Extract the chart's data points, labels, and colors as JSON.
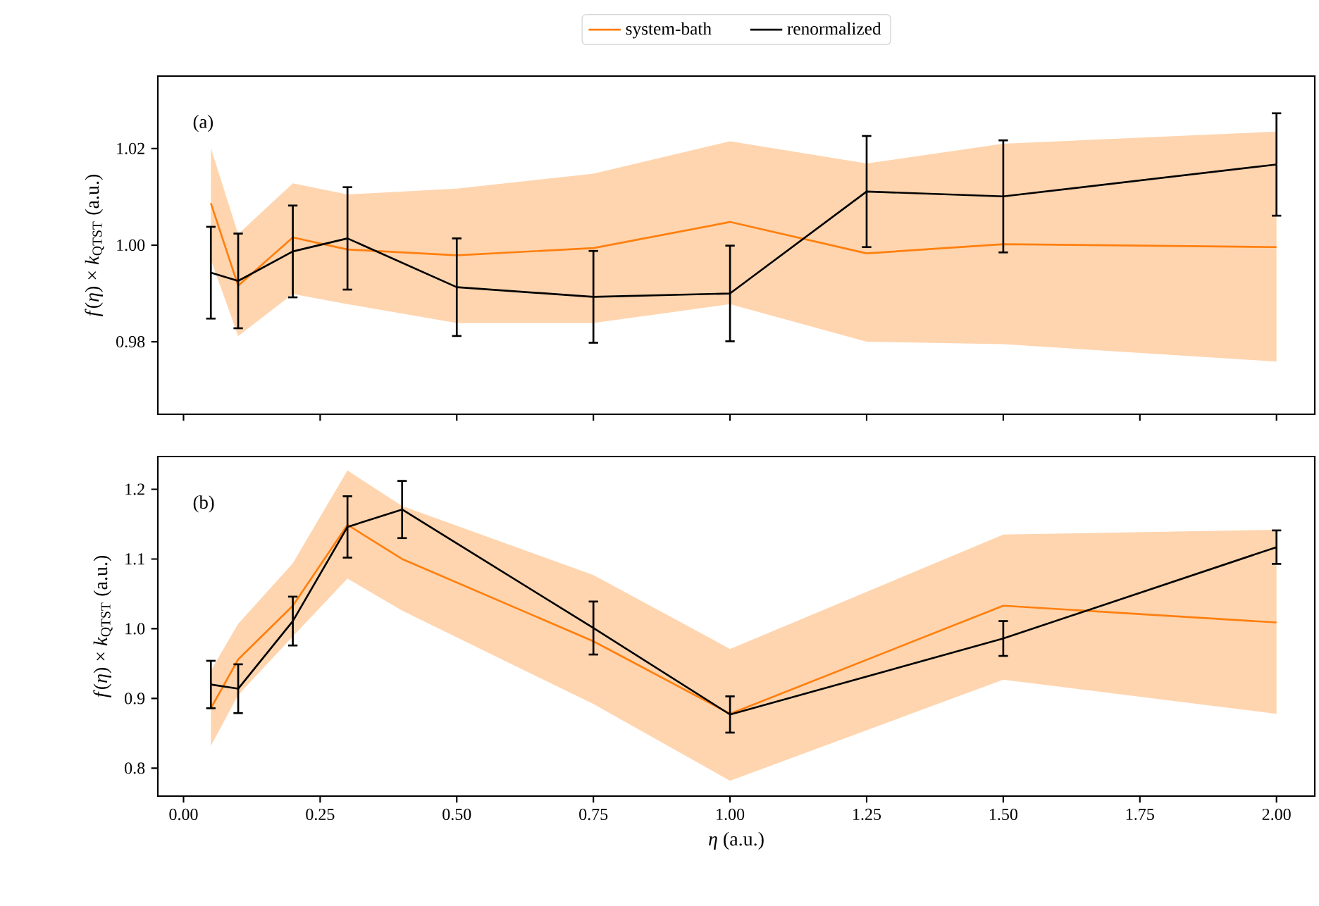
{
  "chart_data": [
    {
      "type": "line",
      "annotations": [
        "(a)"
      ],
      "ylabel": "*f*(*η*) × *k*$_{QTST}$ (a.u.)",
      "xlim": [
        -0.047,
        2.07
      ],
      "ylim": [
        0.965,
        1.035
      ],
      "xticks": [
        0,
        0.25,
        0.5,
        0.75,
        1,
        1.25,
        1.5,
        1.75,
        2
      ],
      "yticks": [
        0.98,
        {
          "value": 1,
          "label": "1.00"
        },
        1.02
      ],
      "tick_labels": "y",
      "legend": "top",
      "grid": false,
      "series": [
        {
          "name": "system-bath",
          "color": "#ff7f0e",
          "x": [
            0.05,
            0.1,
            0.2,
            0.3,
            0.5,
            0.75,
            1.0,
            1.25,
            1.5,
            2.0
          ],
          "values": [
            1.0087,
            0.9916,
            1.0016,
            0.9991,
            0.9979,
            0.9994,
            1.0048,
            0.9983,
            1.0002,
            0.9996
          ],
          "lower": [
            0.997,
            0.9812,
            0.9899,
            0.9878,
            0.9839,
            0.9839,
            0.9878,
            0.98,
            0.9795,
            0.9759
          ],
          "upper": [
            1.0201,
            1.0023,
            1.0128,
            1.0105,
            1.0117,
            1.0148,
            1.0215,
            1.0169,
            1.021,
            1.0235
          ]
        },
        {
          "name": "renormalized",
          "color": "#000000",
          "x": [
            0.05,
            0.1,
            0.2,
            0.3,
            0.5,
            0.75,
            1.0,
            1.25,
            1.5,
            2.0
          ],
          "values": [
            0.9943,
            0.9926,
            0.9987,
            1.0014,
            0.9913,
            0.9893,
            0.99,
            1.0111,
            1.0101,
            1.0167
          ],
          "errors": [
            0.0095,
            0.0098,
            0.0095,
            0.0106,
            0.0101,
            0.0095,
            0.0099,
            0.0115,
            0.0116,
            0.0106
          ]
        }
      ]
    },
    {
      "type": "line",
      "annotations": [
        "(b)"
      ],
      "xlabel": "*η* (a.u.)",
      "ylabel": "*f*(*η*) × *k*$_{QTST}$ (a.u.)",
      "xlim": [
        -0.047,
        2.07
      ],
      "ylim": [
        0.76,
        1.247
      ],
      "xticks": [
        {
          "value": 0,
          "label": "0.00"
        },
        {
          "value": 0.25,
          "label": "0.25"
        },
        {
          "value": 0.5,
          "label": "0.50"
        },
        {
          "value": 0.75,
          "label": "0.75"
        },
        {
          "value": 1,
          "label": "1.00"
        },
        {
          "value": 1.25,
          "label": "1.25"
        },
        {
          "value": 1.5,
          "label": "1.50"
        },
        {
          "value": 1.75,
          "label": "1.75"
        },
        {
          "value": 2,
          "label": "2.00"
        }
      ],
      "yticks": [
        0.8,
        0.9,
        {
          "value": 1,
          "label": "1.0"
        },
        1.1,
        1.2
      ],
      "grid": false,
      "series": [
        {
          "color": "#ff7f0e",
          "x": [
            0.05,
            0.1,
            0.2,
            0.3,
            0.4,
            0.75,
            1.0,
            1.5,
            2.0
          ],
          "values": [
            0.886,
            0.956,
            1.033,
            1.149,
            1.1,
            0.982,
            0.878,
            1.033,
            1.009
          ],
          "lower": [
            0.832,
            0.905,
            0.989,
            1.072,
            1.026,
            0.892,
            0.782,
            0.927,
            0.878
          ],
          "upper": [
            0.94,
            1.007,
            1.094,
            1.227,
            1.176,
            1.077,
            0.971,
            1.135,
            1.142
          ]
        },
        {
          "color": "#000000",
          "x": [
            0.05,
            0.1,
            0.2,
            0.3,
            0.4,
            0.75,
            1.0,
            1.5,
            2.0
          ],
          "values": [
            0.92,
            0.914,
            1.011,
            1.146,
            1.171,
            1.001,
            0.877,
            0.986,
            1.117
          ],
          "errors": [
            0.034,
            0.035,
            0.035,
            0.044,
            0.041,
            0.038,
            0.026,
            0.025,
            0.024
          ]
        }
      ]
    }
  ]
}
